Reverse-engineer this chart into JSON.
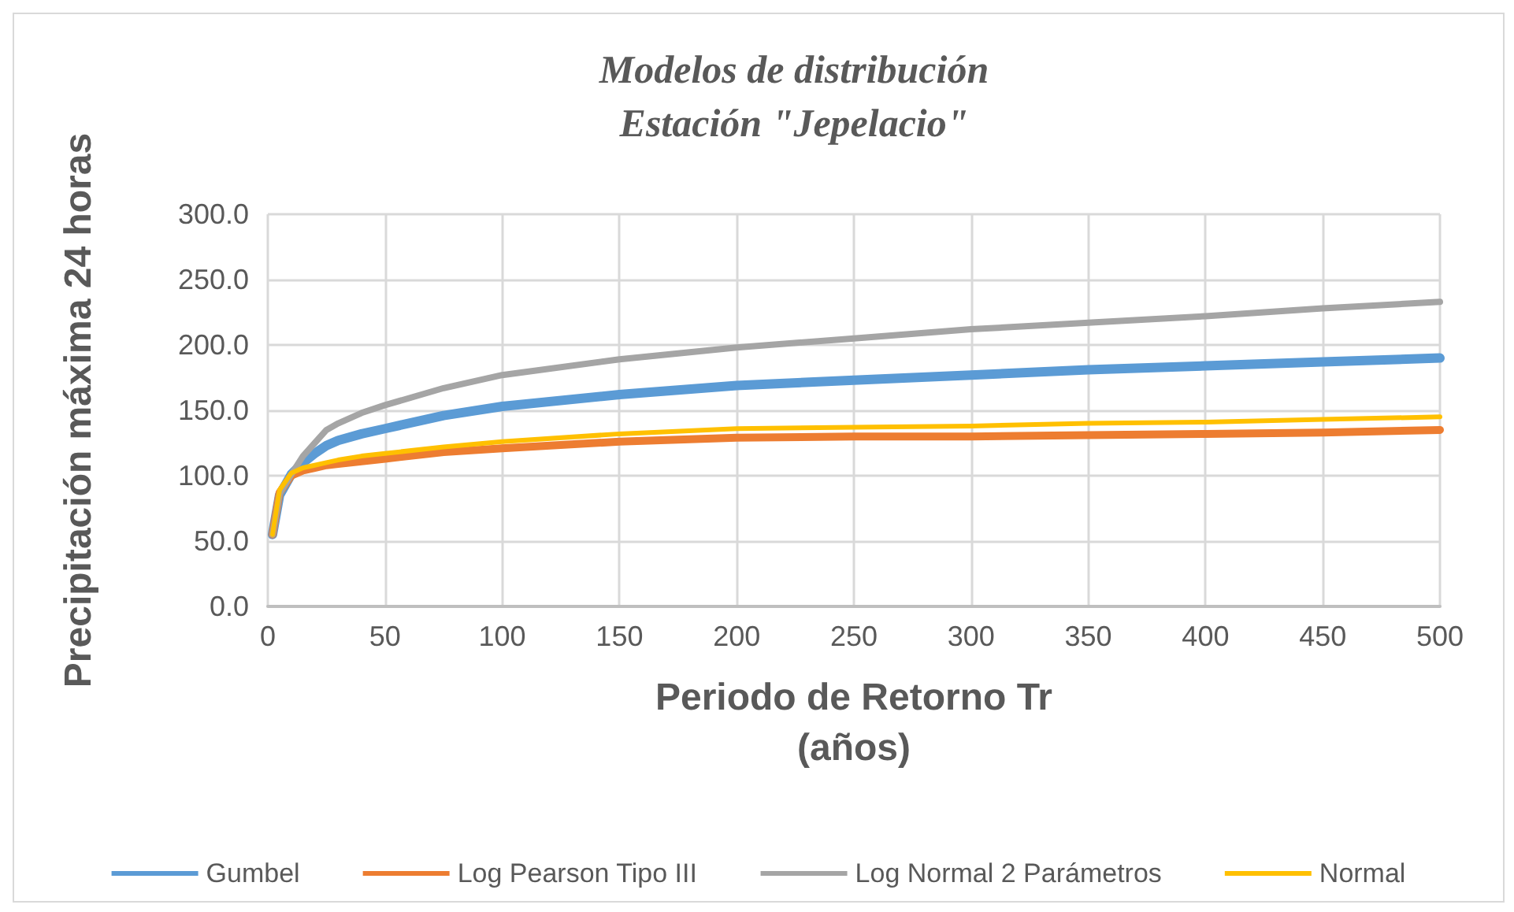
{
  "chart_data": {
    "type": "line",
    "title": "Modelos de distribución\nEstación \"Jepelacio\"",
    "xlabel": "Periodo de Retorno Tr\n(años)",
    "ylabel": "Precipitación máxima 24 horas",
    "x": [
      2,
      5,
      10,
      15,
      20,
      25,
      30,
      40,
      50,
      75,
      100,
      150,
      200,
      250,
      300,
      350,
      400,
      450,
      500
    ],
    "series": [
      {
        "name": "Gumbel",
        "color": "#5b9bd5",
        "values": [
          55,
          85,
          101,
          110,
          117,
          123,
          127,
          132,
          136,
          146,
          153,
          162,
          169,
          173,
          177,
          181,
          184,
          187,
          190
        ]
      },
      {
        "name": "Log Pearson Tipo III",
        "color": "#ed7d31",
        "values": [
          55,
          87,
          100,
          104,
          106,
          108,
          109,
          111,
          113,
          118,
          121,
          126,
          129,
          130,
          130,
          131,
          132,
          133,
          135
        ]
      },
      {
        "name": "Log Normal 2 Parámetros",
        "color": "#a5a5a5",
        "values": [
          55,
          86,
          101,
          115,
          125,
          135,
          140,
          148,
          154,
          167,
          177,
          189,
          198,
          205,
          212,
          217,
          222,
          228,
          233
        ]
      },
      {
        "name": "Normal",
        "color": "#ffc000",
        "values": [
          55,
          89,
          102,
          106,
          108,
          110,
          112,
          115,
          117,
          122,
          126,
          132,
          136,
          137,
          138,
          140,
          141,
          143,
          145
        ]
      }
    ],
    "xlim": [
      0,
      500
    ],
    "xticks": [
      0,
      50,
      100,
      150,
      200,
      250,
      300,
      350,
      400,
      450,
      500
    ],
    "ylim": [
      0,
      300
    ],
    "yticks": [
      {
        "value": 0,
        "label": "0.0"
      },
      {
        "value": 50,
        "label": "50.0"
      },
      {
        "value": 100,
        "label": "100.0"
      },
      {
        "value": 150,
        "label": "150.0"
      },
      {
        "value": 200,
        "label": "200.0"
      },
      {
        "value": 250,
        "label": "250.0"
      },
      {
        "value": 300,
        "label": "300.0"
      }
    ],
    "grid": true,
    "legend": "bottom",
    "marker": "none",
    "line_style": "solid"
  }
}
